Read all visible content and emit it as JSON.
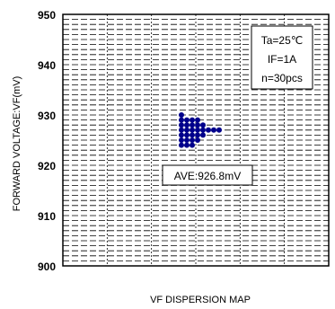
{
  "chart_data": {
    "type": "scatter",
    "title": "",
    "xlabel": "VF DISPERSION MAP",
    "ylabel": "FORWARD VOLTAGE:VF(mV)",
    "ylim": [
      900,
      950
    ],
    "yticks": [
      "950",
      "940",
      "930",
      "920",
      "910",
      "900"
    ],
    "grid": true,
    "legend": [
      "Ta=25℃",
      "IF=1A",
      "n=30pcs"
    ],
    "annotation": "AVE:926.8mV",
    "point_color": "#00008b",
    "distribution": [
      {
        "vf": 930,
        "count": 1
      },
      {
        "vf": 929,
        "count": 4
      },
      {
        "vf": 928,
        "count": 5
      },
      {
        "vf": 927,
        "count": 8
      },
      {
        "vf": 926,
        "count": 5
      },
      {
        "vf": 925,
        "count": 4
      },
      {
        "vf": 924,
        "count": 3
      }
    ]
  }
}
